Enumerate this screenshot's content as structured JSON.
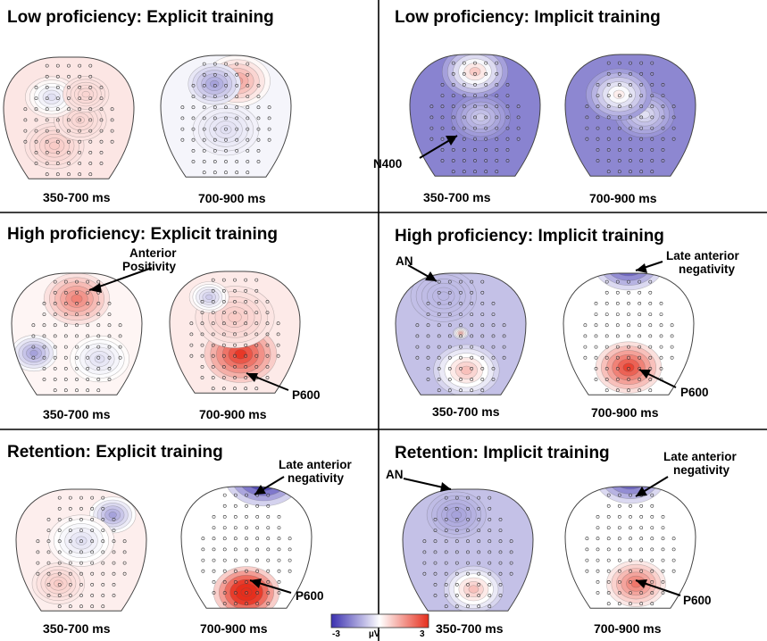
{
  "panels": [
    {
      "title": "Low proficiency: Explicit training",
      "maps": [
        {
          "label": "350-700 ms",
          "base": 0.12,
          "blobs": [
            [
              -0.25,
              0.55,
              0.45,
              0.25
            ],
            [
              0.2,
              0.1,
              0.4,
              0.2
            ],
            [
              -0.3,
              -0.3,
              0.4,
              -0.15
            ],
            [
              0.3,
              -0.35,
              0.35,
              0.2
            ]
          ]
        },
        {
          "label": "700-900 ms",
          "base": -0.05,
          "blobs": [
            [
              0.2,
              -0.55,
              0.5,
              0.45
            ],
            [
              -0.2,
              -0.5,
              0.4,
              -0.45
            ],
            [
              0,
              0.3,
              0.5,
              -0.15
            ]
          ]
        }
      ],
      "annotations": []
    },
    {
      "title": "Low proficiency: Implicit training",
      "maps": [
        {
          "label": "350-700 ms",
          "base": -0.6,
          "blobs": [
            [
              0.1,
              0.1,
              0.45,
              -0.25
            ],
            [
              0,
              -0.7,
              0.5,
              0.25
            ]
          ]
        },
        {
          "label": "700-900 ms",
          "base": -0.58,
          "blobs": [
            [
              0.25,
              0.05,
              0.45,
              -0.15
            ],
            [
              -0.2,
              -0.3,
              0.5,
              0.08
            ]
          ]
        }
      ],
      "annotations": [
        {
          "map": 0,
          "text": [
            "N400"
          ]
        }
      ]
    },
    {
      "title": "High proficiency: Explicit training",
      "maps": [
        {
          "label": "350-700 ms",
          "base": 0.05,
          "blobs": [
            [
              0,
              -0.55,
              0.5,
              0.6
            ],
            [
              -0.75,
              0.4,
              0.35,
              -0.45
            ],
            [
              0.4,
              0.5,
              0.45,
              -0.15
            ]
          ]
        },
        {
          "label": "700-900 ms",
          "base": 0.1,
          "blobs": [
            [
              0.1,
              0.45,
              0.55,
              0.95
            ],
            [
              0,
              -0.2,
              0.6,
              0.25
            ],
            [
              -0.45,
              -0.55,
              0.3,
              -0.25
            ]
          ]
        }
      ],
      "annotations": [
        {
          "map": 0,
          "text": [
            "Anterior",
            "Positivity"
          ]
        },
        {
          "map": 1,
          "text": [
            "P600"
          ]
        }
      ]
    },
    {
      "title": "High proficiency: Implicit training",
      "maps": [
        {
          "label": "350-700 ms",
          "base": -0.3,
          "blobs": [
            [
              -0.3,
              -0.6,
              0.5,
              -0.35
            ],
            [
              0.1,
              0.7,
              0.5,
              0.3
            ],
            [
              0,
              0.05,
              0.12,
              0.35
            ]
          ]
        },
        {
          "label": "700-900 ms",
          "base": 0,
          "blobs": [
            [
              0,
              -1.2,
              0.55,
              -1.1
            ],
            [
              0,
              0.65,
              0.5,
              0.9
            ]
          ]
        }
      ],
      "annotations": [
        {
          "map": 0,
          "text": [
            "AN"
          ]
        },
        {
          "map": 1,
          "text": [
            "Late anterior",
            "negativity"
          ]
        },
        {
          "map": 1,
          "text": [
            "P600"
          ]
        }
      ]
    },
    {
      "title": "Retention: Explicit training",
      "maps": [
        {
          "label": "350-700 ms",
          "base": 0.08,
          "blobs": [
            [
              0.55,
              -0.55,
              0.35,
              -0.45
            ],
            [
              0,
              -0.1,
              0.5,
              -0.15
            ],
            [
              -0.4,
              0.65,
              0.4,
              0.25
            ]
          ]
        },
        {
          "label": "700-900 ms",
          "base": 0,
          "blobs": [
            [
              0.3,
              -1.2,
              0.6,
              -1.3
            ],
            [
              0,
              0.85,
              0.5,
              1.4
            ]
          ]
        }
      ],
      "annotations": [
        {
          "map": 1,
          "text": [
            "Late anterior",
            "negativity"
          ]
        },
        {
          "map": 1,
          "text": [
            "P600"
          ]
        }
      ]
    },
    {
      "title": "Retention: Implicit training",
      "maps": [
        {
          "label": "350-700 ms",
          "base": -0.3,
          "blobs": [
            [
              -0.2,
              -0.55,
              0.45,
              -0.45
            ],
            [
              0.1,
              0.75,
              0.45,
              0.3
            ]
          ]
        },
        {
          "label": "700-900 ms",
          "base": 0,
          "blobs": [
            [
              0,
              -1.2,
              0.55,
              -1.1
            ],
            [
              0.1,
              0.7,
              0.45,
              0.65
            ]
          ]
        }
      ],
      "annotations": [
        {
          "map": 0,
          "text": [
            "AN"
          ]
        },
        {
          "map": 1,
          "text": [
            "Late anterior",
            "negativity"
          ]
        },
        {
          "map": 1,
          "text": [
            "P600"
          ]
        }
      ]
    }
  ],
  "colorbar": {
    "min": "-3",
    "max": "3",
    "unit": "µV",
    "colors": {
      "negative": "#3a30b0",
      "neutral": "#ffffff",
      "positive": "#e62e1c"
    }
  },
  "electrode_grid": {
    "rows": [
      5,
      5,
      7,
      7,
      9,
      9,
      9,
      9,
      7,
      7,
      5
    ]
  }
}
